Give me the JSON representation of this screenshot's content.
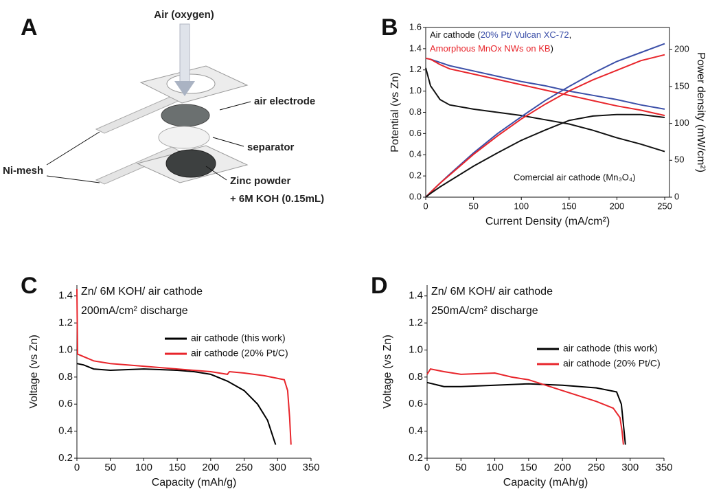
{
  "diagram": {
    "panel": "A",
    "labels": {
      "air": "Air (oxygen)",
      "air_electrode": "air electrode",
      "separator": "separator",
      "ni_mesh": "Ni-mesh",
      "zinc": "Zinc powder",
      "koh": "+ 6M KOH (0.15mL)"
    }
  },
  "chart_data": [
    {
      "type": "line",
      "panel": "B",
      "x_label": "Current Density (mA/cm²)",
      "y_label": "Potential (vs Zn)",
      "y2_label": "Power density (mW/cm²)",
      "legend_text": {
        "prefix": "Air cathode (",
        "separator": ",",
        "suffix": ")"
      },
      "x": [
        0,
        5,
        15,
        25,
        50,
        75,
        100,
        125,
        150,
        175,
        200,
        225,
        250
      ],
      "xlim": [
        0,
        255
      ],
      "xticks": [
        0,
        50,
        100,
        150,
        200,
        250
      ],
      "ylim": [
        0,
        1.6
      ],
      "yticks": [
        {
          "value": 0,
          "label": "0.0"
        },
        0.2,
        0.4,
        0.6,
        0.8,
        {
          "value": 1,
          "label": "1.0"
        },
        1.2,
        1.4,
        1.6
      ],
      "y2lim": [
        0,
        230
      ],
      "y2ticks": [
        0,
        50,
        100,
        150,
        200
      ],
      "series": [
        {
          "name": "20% Pt/ Vulcan XC-72",
          "color": "#3b4fa8",
          "values": [
            1.31,
            1.3,
            1.27,
            1.24,
            1.19,
            1.14,
            1.09,
            1.05,
            1.0,
            0.96,
            0.92,
            0.87,
            0.83
          ]
        },
        {
          "name": "Amorphous MnOx NWs on KB",
          "color": "#e8252b",
          "values": [
            1.31,
            1.3,
            1.25,
            1.21,
            1.16,
            1.11,
            1.06,
            1.01,
            0.96,
            0.91,
            0.86,
            0.82,
            0.77
          ]
        },
        {
          "name": "Comercial air cathode (Mn₃O₄)",
          "color": "#111111",
          "values": [
            1.22,
            1.05,
            0.92,
            0.87,
            0.83,
            0.8,
            0.77,
            0.73,
            0.69,
            0.63,
            0.56,
            0.5,
            0.43
          ]
        },
        {
          "color": "#3b4fa8",
          "axis": "y2",
          "values": [
            0,
            6.5,
            19,
            31,
            60,
            86,
            109,
            131,
            150,
            168,
            184,
            196,
            208
          ]
        },
        {
          "color": "#e8252b",
          "axis": "y2",
          "values": [
            0,
            6.5,
            19,
            30,
            58,
            83,
            106,
            126,
            144,
            159,
            172,
            185,
            193
          ]
        },
        {
          "color": "#111111",
          "axis": "y2",
          "values": [
            0,
            5,
            14,
            22,
            42,
            60,
            77,
            91,
            104,
            110,
            112,
            112,
            108
          ]
        }
      ]
    },
    {
      "type": "line",
      "panel": "C",
      "x_label": "Capacity (mAh/g)",
      "y_label": "Voltage (vs Zn)",
      "annotations": [
        "Zn/ 6M KOH/ air cathode",
        "200mA/cm² discharge"
      ],
      "xlim": [
        0,
        350
      ],
      "xticks": [
        0,
        50,
        100,
        150,
        200,
        250,
        300,
        350
      ],
      "ylim": [
        0.2,
        1.48
      ],
      "yticks": [
        0.2,
        0.4,
        0.6,
        0.8,
        {
          "value": 1,
          "label": "1.0"
        },
        1.2,
        1.4
      ],
      "series": [
        {
          "name": "air cathode (this work)",
          "color": "#000000",
          "x": [
            0,
            10,
            25,
            50,
            100,
            150,
            175,
            200,
            225,
            250,
            270,
            285,
            295,
            297
          ],
          "values": [
            0.9,
            0.89,
            0.86,
            0.85,
            0.86,
            0.85,
            0.84,
            0.82,
            0.77,
            0.7,
            0.6,
            0.48,
            0.33,
            0.3
          ]
        },
        {
          "name": "air cathode (20% Pt/C)",
          "color": "#e8252b",
          "x": [
            0,
            1,
            25,
            50,
            100,
            150,
            200,
            225,
            228,
            250,
            280,
            310,
            315,
            318,
            320
          ],
          "values": [
            1.45,
            0.97,
            0.92,
            0.9,
            0.88,
            0.86,
            0.84,
            0.82,
            0.84,
            0.83,
            0.81,
            0.78,
            0.7,
            0.5,
            0.3
          ]
        }
      ]
    },
    {
      "type": "line",
      "panel": "D",
      "x_label": "Capacity (mAh/g)",
      "y_label": "Voltage (vs Zn)",
      "annotations": [
        "Zn/ 6M KOH/ air cathode",
        "250mA/cm² discharge"
      ],
      "xlim": [
        0,
        350
      ],
      "xticks": [
        0,
        50,
        100,
        150,
        200,
        250,
        300,
        350
      ],
      "ylim": [
        0.2,
        1.48
      ],
      "yticks": [
        0.2,
        0.4,
        0.6,
        0.8,
        {
          "value": 1,
          "label": "1.0"
        },
        1.2,
        1.4
      ],
      "series": [
        {
          "name": "air cathode (this work)",
          "color": "#000000",
          "x": [
            0,
            25,
            50,
            100,
            150,
            200,
            250,
            280,
            287,
            290,
            293
          ],
          "values": [
            0.76,
            0.73,
            0.73,
            0.74,
            0.75,
            0.74,
            0.72,
            0.69,
            0.6,
            0.45,
            0.3
          ]
        },
        {
          "name": "air cathode (20% Pt/C)",
          "color": "#e8252b",
          "x": [
            0,
            5,
            25,
            50,
            100,
            125,
            150,
            175,
            200,
            225,
            250,
            275,
            285,
            288,
            290
          ],
          "values": [
            0.82,
            0.86,
            0.84,
            0.82,
            0.83,
            0.8,
            0.78,
            0.74,
            0.7,
            0.66,
            0.62,
            0.57,
            0.5,
            0.4,
            0.3
          ]
        }
      ]
    }
  ]
}
